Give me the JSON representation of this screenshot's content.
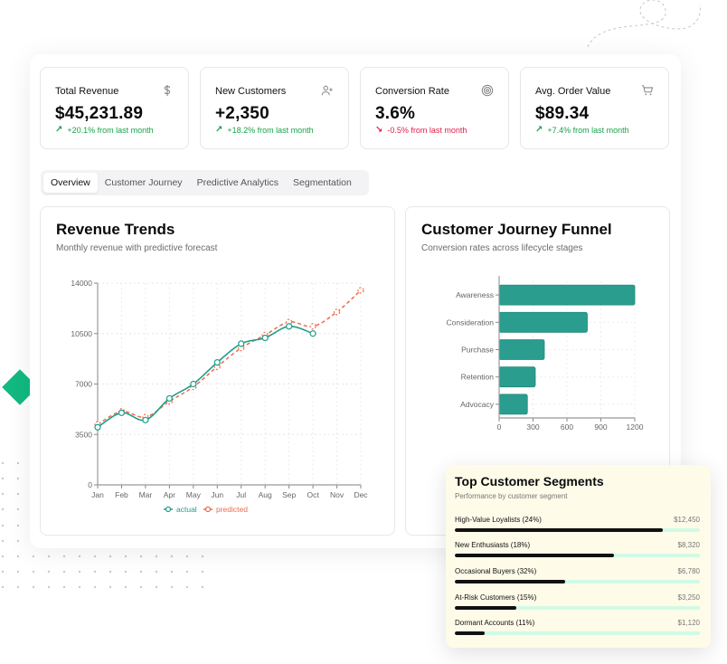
{
  "kpis": [
    {
      "title": "Total Revenue",
      "value": "$45,231.89",
      "delta": "+20.1% from last month",
      "trend": "up",
      "icon": "dollar-icon"
    },
    {
      "title": "New Customers",
      "value": "+2,350",
      "delta": "+18.2% from last month",
      "trend": "up",
      "icon": "user-plus-icon"
    },
    {
      "title": "Conversion Rate",
      "value": "3.6%",
      "delta": "-0.5% from last month",
      "trend": "down",
      "icon": "target-icon"
    },
    {
      "title": "Avg. Order Value",
      "value": "$89.34",
      "delta": "+7.4% from last month",
      "trend": "up",
      "icon": "cart-icon"
    }
  ],
  "tabs": [
    {
      "label": "Overview",
      "active": true
    },
    {
      "label": "Customer Journey",
      "active": false
    },
    {
      "label": "Predictive Analytics",
      "active": false
    },
    {
      "label": "Segmentation",
      "active": false
    }
  ],
  "revenue_panel": {
    "title": "Revenue Trends",
    "subtitle": "Monthly revenue with predictive forecast"
  },
  "funnel_panel": {
    "title": "Customer Journey Funnel",
    "subtitle": "Conversion rates across lifecycle stages"
  },
  "segments_panel": {
    "title": "Top Customer Segments",
    "subtitle": "Performance by customer segment",
    "items": [
      {
        "name": "High-Value Loyalists (24%)",
        "value": "$12,450",
        "bar_pct": 85
      },
      {
        "name": "New Enthusiasts (18%)",
        "value": "$8,320",
        "bar_pct": 65
      },
      {
        "name": "Occasional Buyers (32%)",
        "value": "$6,780",
        "bar_pct": 45
      },
      {
        "name": "At-Risk Customers (15%)",
        "value": "$3,250",
        "bar_pct": 25
      },
      {
        "name": "Dormant Accounts (11%)",
        "value": "$1,120",
        "bar_pct": 12
      }
    ]
  },
  "colors": {
    "accent_teal": "#1f9e8a",
    "predicted_orange": "#ee6a4a",
    "positive": "#16a34a",
    "negative": "#e11d48",
    "funnel_bar": "#2a9d8f",
    "deco_green": "#12b981",
    "deco_purple": "#5046e5"
  },
  "chart_data": [
    {
      "type": "line",
      "title": "Revenue Trends",
      "subtitle": "Monthly revenue with predictive forecast",
      "xlabel": "",
      "ylabel": "",
      "categories": [
        "Jan",
        "Feb",
        "Mar",
        "Apr",
        "May",
        "Jun",
        "Jul",
        "Aug",
        "Sep",
        "Oct",
        "Nov",
        "Dec"
      ],
      "series": [
        {
          "name": "actual",
          "values": [
            4000,
            5000,
            4500,
            6000,
            7000,
            8500,
            9800,
            10200,
            11000,
            10500,
            null,
            null
          ]
        },
        {
          "name": "predicted",
          "values": [
            4200,
            5100,
            4700,
            5800,
            6800,
            8200,
            9500,
            10400,
            11300,
            11000,
            12000,
            13500
          ]
        }
      ],
      "yticks": [
        0,
        3500,
        7000,
        10500,
        14000
      ],
      "ylim": [
        0,
        14000
      ],
      "grid": true,
      "legend_position": "bottom"
    },
    {
      "type": "bar",
      "orientation": "horizontal",
      "title": "Customer Journey Funnel",
      "subtitle": "Conversion rates across lifecycle stages",
      "categories": [
        "Awareness",
        "Consideration",
        "Purchase",
        "Retention",
        "Advocacy"
      ],
      "values": [
        1200,
        780,
        400,
        320,
        250
      ],
      "xticks": [
        0,
        300,
        600,
        900,
        1200
      ],
      "xlim": [
        0,
        1200
      ],
      "grid": true
    }
  ]
}
